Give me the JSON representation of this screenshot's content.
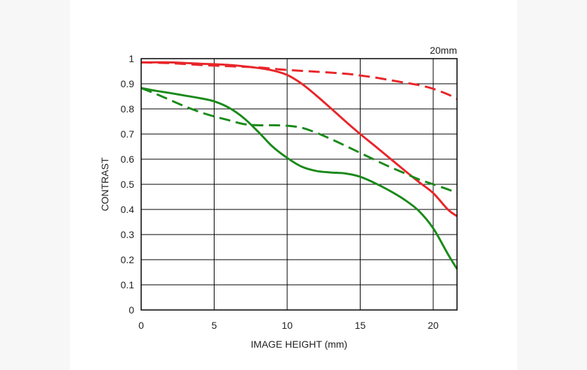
{
  "chart_data": {
    "type": "line",
    "corner_label": "20mm",
    "xlabel": "IMAGE HEIGHT (mm)",
    "ylabel": "CONTRAST",
    "xlim": [
      0,
      21.63
    ],
    "ylim": [
      0,
      1
    ],
    "x_ticks": [
      0,
      5,
      10,
      15,
      20
    ],
    "y_ticks": [
      0,
      0.1,
      0.2,
      0.3,
      0.4,
      0.5,
      0.6,
      0.7,
      0.8,
      0.9,
      1
    ],
    "x_tick_labels": [
      "0",
      "5",
      "10",
      "15",
      "20"
    ],
    "y_tick_labels": [
      "0",
      "0.1",
      "0.2",
      "0.3",
      "0.4",
      "0.5",
      "0.6",
      "0.7",
      "0.8",
      "0.9",
      "1"
    ],
    "grid": true,
    "series": [
      {
        "color": "#e8262a",
        "dash": "solid",
        "points": [
          [
            0,
            0.985
          ],
          [
            2,
            0.985
          ],
          [
            4,
            0.98
          ],
          [
            6,
            0.975
          ],
          [
            8,
            0.963
          ],
          [
            9,
            0.953
          ],
          [
            10,
            0.935
          ],
          [
            11,
            0.9
          ],
          [
            12,
            0.853
          ],
          [
            13,
            0.802
          ],
          [
            14,
            0.75
          ],
          [
            15,
            0.7
          ],
          [
            16,
            0.653
          ],
          [
            17,
            0.605
          ],
          [
            18,
            0.557
          ],
          [
            19,
            0.51
          ],
          [
            20,
            0.465
          ],
          [
            21,
            0.4
          ],
          [
            21.63,
            0.373
          ]
        ]
      },
      {
        "color": "#e8262a",
        "dash": "dashed",
        "points": [
          [
            0,
            0.985
          ],
          [
            2,
            0.982
          ],
          [
            4,
            0.975
          ],
          [
            6,
            0.97
          ],
          [
            8,
            0.965
          ],
          [
            10,
            0.955
          ],
          [
            12,
            0.948
          ],
          [
            14,
            0.94
          ],
          [
            15,
            0.933
          ],
          [
            16,
            0.925
          ],
          [
            17,
            0.915
          ],
          [
            18,
            0.905
          ],
          [
            19,
            0.895
          ],
          [
            20,
            0.88
          ],
          [
            21,
            0.858
          ],
          [
            21.63,
            0.84
          ]
        ]
      },
      {
        "color": "#1a8a1a",
        "dash": "solid",
        "points": [
          [
            0,
            0.883
          ],
          [
            1,
            0.872
          ],
          [
            2,
            0.863
          ],
          [
            3,
            0.853
          ],
          [
            4,
            0.843
          ],
          [
            5,
            0.83
          ],
          [
            6,
            0.805
          ],
          [
            7,
            0.765
          ],
          [
            8,
            0.71
          ],
          [
            9,
            0.65
          ],
          [
            10,
            0.605
          ],
          [
            11,
            0.57
          ],
          [
            12,
            0.553
          ],
          [
            13,
            0.547
          ],
          [
            14,
            0.543
          ],
          [
            15,
            0.53
          ],
          [
            16,
            0.505
          ],
          [
            17,
            0.475
          ],
          [
            18,
            0.44
          ],
          [
            19,
            0.395
          ],
          [
            20,
            0.325
          ],
          [
            21,
            0.223
          ],
          [
            21.63,
            0.163
          ]
        ]
      },
      {
        "color": "#1a8a1a",
        "dash": "dashed",
        "points": [
          [
            0,
            0.883
          ],
          [
            1,
            0.86
          ],
          [
            2,
            0.835
          ],
          [
            3,
            0.81
          ],
          [
            4,
            0.788
          ],
          [
            5,
            0.77
          ],
          [
            6,
            0.755
          ],
          [
            7,
            0.74
          ],
          [
            8,
            0.735
          ],
          [
            9,
            0.735
          ],
          [
            10,
            0.733
          ],
          [
            11,
            0.725
          ],
          [
            12,
            0.705
          ],
          [
            13,
            0.68
          ],
          [
            14,
            0.653
          ],
          [
            15,
            0.625
          ],
          [
            16,
            0.597
          ],
          [
            17,
            0.57
          ],
          [
            18,
            0.545
          ],
          [
            19,
            0.52
          ],
          [
            20,
            0.5
          ],
          [
            21,
            0.48
          ],
          [
            21.63,
            0.465
          ]
        ]
      }
    ]
  }
}
